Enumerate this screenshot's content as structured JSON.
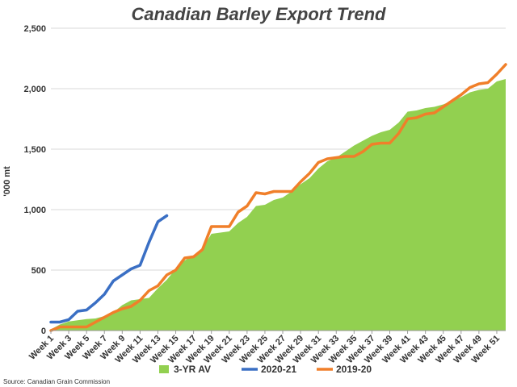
{
  "chart_data": {
    "type": "line",
    "title": "Canadian Barley Export Trend",
    "ylabel": "'000 mt",
    "xlabel": "",
    "source": "Source: Canadian Grain Commission",
    "ylim": [
      0,
      2500
    ],
    "yticks": [
      "0",
      "500",
      "1,000",
      "1,500",
      "2,000",
      "2,500"
    ],
    "ytick_values": [
      0,
      500,
      1000,
      1500,
      2000,
      2500
    ],
    "xtick_labels": [
      "Week 1",
      "Week 3",
      "Week 5",
      "Week 7",
      "Week 9",
      "Week 11",
      "Week 13",
      "Week 15",
      "Week 17",
      "Week 19",
      "Week 21",
      "Week 23",
      "Week 25",
      "Week 27",
      "Week 29",
      "Week 31",
      "Week 33",
      "Week 35",
      "Week 37",
      "Week 39",
      "Week 41",
      "Week 43",
      "Week 45",
      "Week 47",
      "Week 49",
      "Week 51"
    ],
    "xtick_weeks": [
      1,
      3,
      5,
      7,
      9,
      11,
      13,
      15,
      17,
      19,
      21,
      23,
      25,
      27,
      29,
      31,
      33,
      35,
      37,
      39,
      41,
      43,
      45,
      47,
      49,
      51
    ],
    "xlim": [
      1,
      52
    ],
    "grid": true,
    "legend_position": "bottom",
    "series": [
      {
        "name": "3-YR AV",
        "type": "area",
        "color": "#92d050",
        "values": [
          10,
          50,
          75,
          85,
          95,
          100,
          120,
          150,
          210,
          250,
          260,
          270,
          350,
          420,
          510,
          580,
          620,
          680,
          800,
          810,
          820,
          890,
          940,
          1030,
          1040,
          1080,
          1100,
          1150,
          1210,
          1260,
          1340,
          1400,
          1430,
          1480,
          1530,
          1570,
          1610,
          1640,
          1660,
          1720,
          1810,
          1820,
          1840,
          1850,
          1870,
          1900,
          1930,
          1970,
          1990,
          2000,
          2060,
          2080
        ]
      },
      {
        "name": "2020-21",
        "type": "line",
        "color": "#3a6fc4",
        "values": [
          70,
          70,
          90,
          160,
          170,
          230,
          300,
          410,
          460,
          510,
          540,
          730,
          900,
          950
        ]
      },
      {
        "name": "2019-20",
        "type": "line",
        "color": "#f07f2a",
        "values": [
          0,
          30,
          30,
          30,
          30,
          70,
          110,
          150,
          180,
          200,
          250,
          330,
          370,
          460,
          500,
          600,
          610,
          670,
          860,
          860,
          860,
          980,
          1030,
          1140,
          1130,
          1150,
          1150,
          1150,
          1230,
          1300,
          1390,
          1420,
          1430,
          1440,
          1440,
          1480,
          1540,
          1550,
          1550,
          1630,
          1750,
          1760,
          1790,
          1800,
          1850,
          1900,
          1950,
          2010,
          2040,
          2050,
          2120,
          2200
        ]
      }
    ]
  }
}
